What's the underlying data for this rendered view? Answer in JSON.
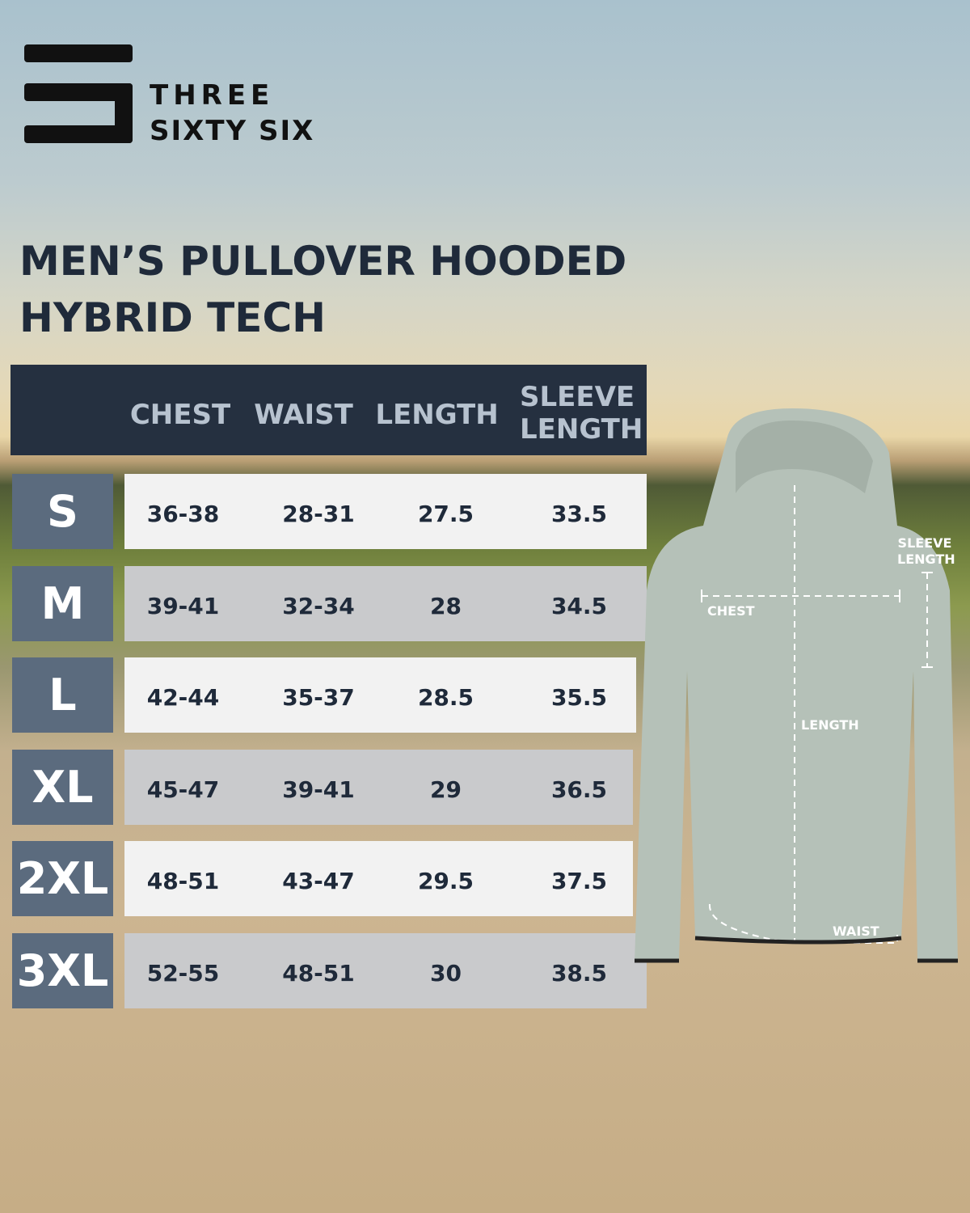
{
  "brand": {
    "line1": "THREE",
    "line2": "SIXTY SIX"
  },
  "title": {
    "line1": "MEN’S PULLOVER HOODED",
    "line2": "HYBRID TECH"
  },
  "table": {
    "headers": [
      "CHEST",
      "WAIST",
      "LENGTH",
      "SLEEVE LENGTH"
    ],
    "rows": [
      {
        "size": "S",
        "chest": "36-38",
        "waist": "28-31",
        "length": "27.5",
        "sleeve": "33.5"
      },
      {
        "size": "M",
        "chest": "39-41",
        "waist": "32-34",
        "length": "28",
        "sleeve": "34.5"
      },
      {
        "size": "L",
        "chest": "42-44",
        "waist": "35-37",
        "length": "28.5",
        "sleeve": "35.5"
      },
      {
        "size": "XL",
        "chest": "45-47",
        "waist": "39-41",
        "length": "29",
        "sleeve": "36.5"
      },
      {
        "size": "2XL",
        "chest": "48-51",
        "waist": "43-47",
        "length": "29.5",
        "sleeve": "37.5"
      },
      {
        "size": "3XL",
        "chest": "52-55",
        "waist": "48-51",
        "length": "30",
        "sleeve": "38.5"
      }
    ]
  },
  "diagram": {
    "chest": "CHEST",
    "sleeve": "SLEEVE LENGTH",
    "length": "LENGTH",
    "waist": "WAIST"
  },
  "colors": {
    "header": "#253040",
    "size_box": "#5b6b7e",
    "row_light": "#f2f2f2",
    "row_dark": "#c9cacc",
    "hoodie": "#b5c1b8"
  }
}
